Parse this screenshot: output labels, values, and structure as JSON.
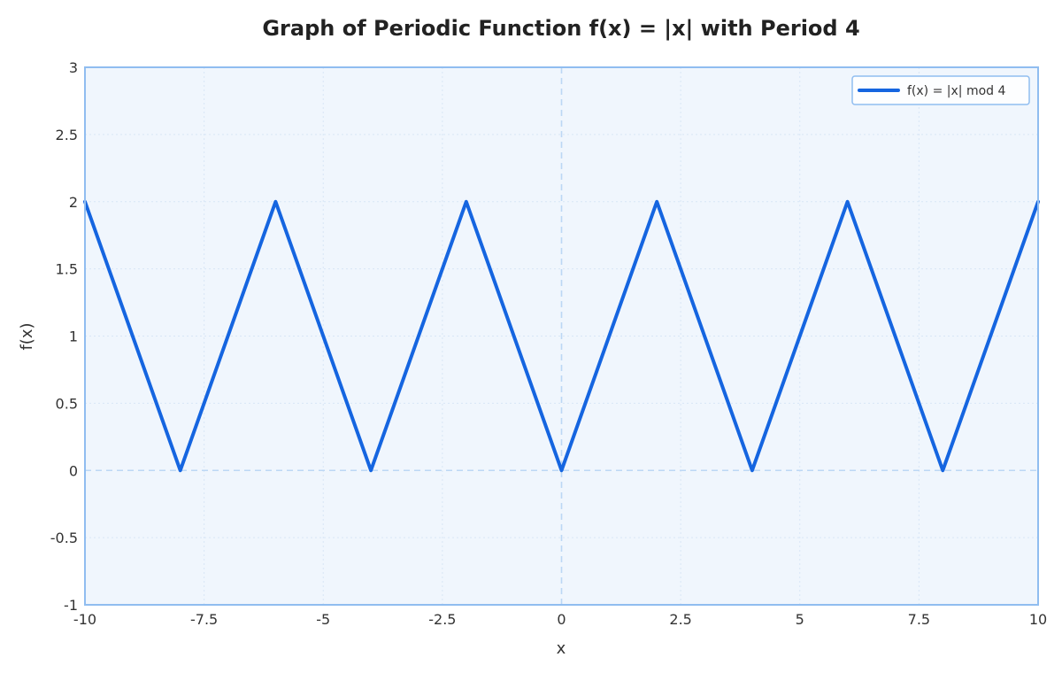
{
  "chart_data": {
    "type": "line",
    "title": "Graph of Periodic Function f(x) = |x| with Period 4",
    "xlabel": "x",
    "ylabel": "f(x)",
    "xlim": [
      -10,
      10
    ],
    "ylim": [
      -1,
      3
    ],
    "x_ticks": [
      -10,
      -7.5,
      -5,
      -2.5,
      0,
      2.5,
      5,
      7.5,
      10
    ],
    "x_tick_labels": [
      "-10",
      "-7.5",
      "-5",
      "-2.5",
      "0",
      "2.5",
      "5",
      "7.5",
      "10"
    ],
    "y_ticks": [
      -1,
      -0.5,
      0,
      0.5,
      1,
      1.5,
      2,
      2.5,
      3
    ],
    "y_tick_labels": [
      "-1",
      "-0.5",
      "0",
      "0.5",
      "1",
      "1.5",
      "2",
      "2.5",
      "3"
    ],
    "grid": true,
    "legend_position": "top-right",
    "series": [
      {
        "name": "f(x) = |x| mod 4",
        "color": "#1565e0",
        "x": [
          -10,
          -8,
          -6,
          -4,
          -2,
          0,
          2,
          4,
          6,
          8,
          10
        ],
        "y": [
          2,
          0,
          2,
          0,
          2,
          0,
          2,
          0,
          2,
          0,
          2
        ]
      }
    ],
    "colors": {
      "plot_background": "#f0f6fd",
      "frame": "#90bdf0",
      "grid": "#d8e6f6",
      "zero_line": "#bcd7f5"
    }
  }
}
